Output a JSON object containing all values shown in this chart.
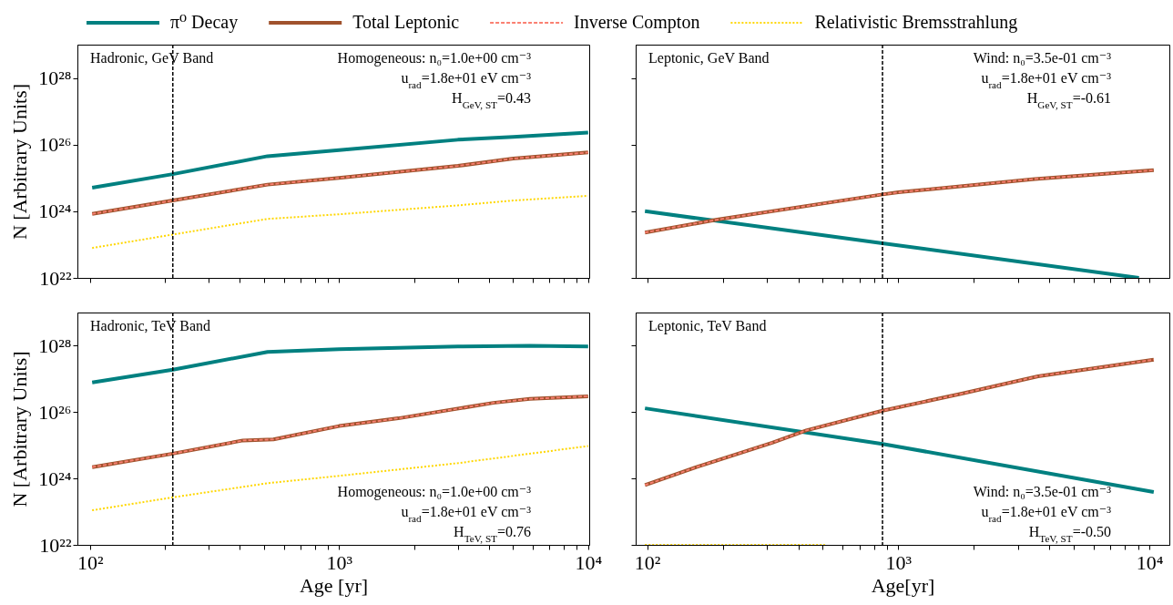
{
  "chart_data": [
    {
      "type": "line",
      "title": "Hadronic, GeV Band",
      "ylabel": "N [Arbitrary Units]",
      "log": "xy",
      "legend": "top",
      "tick_labels": "y",
      "xlim": [
        89,
        10100
      ],
      "ylim": [
        1e+22,
        1e+29
      ],
      "xticks": [
        {
          "value": 100,
          "label": null
        },
        {
          "value": 200,
          "label": null
        },
        {
          "value": 300,
          "label": null
        },
        {
          "value": 400,
          "label": null
        },
        {
          "value": 500,
          "label": null
        },
        {
          "value": 600,
          "label": null
        },
        {
          "value": 700,
          "label": null
        },
        {
          "value": 800,
          "label": null
        },
        {
          "value": 900,
          "label": null
        },
        {
          "value": 1000,
          "label": null
        },
        {
          "value": 2000,
          "label": null
        },
        {
          "value": 3000,
          "label": null
        },
        {
          "value": 4000,
          "label": null
        },
        {
          "value": 5000,
          "label": null
        },
        {
          "value": 6000,
          "label": null
        },
        {
          "value": 7000,
          "label": null
        },
        {
          "value": 8000,
          "label": null
        },
        {
          "value": 9000,
          "label": null
        },
        {
          "value": 10000,
          "label": null
        }
      ],
      "yticks": [
        {
          "value": 1e+22,
          "label": "10²²"
        },
        {
          "value": 1e+24,
          "label": "10²⁴"
        },
        {
          "value": 1e+26,
          "label": "10²⁶"
        },
        {
          "value": 1e+28,
          "label": "10²⁸"
        }
      ],
      "series": [
        {
          "name": "π⁰ Decay",
          "color": "#008080",
          "line_style": "solid",
          "x": [
            102,
            215,
            516,
            1000,
            3000,
            5000,
            10000
          ],
          "values": [
            5.1e+24,
            1.3e+25,
            4.5e+25,
            6.8e+25,
            1.4e+26,
            1.7e+26,
            2.3e+26
          ]
        },
        {
          "name": "Total Leptonic",
          "color": "#a0522d",
          "line_style": "solid",
          "x": [
            102,
            215,
            516,
            1000,
            3000,
            5000,
            10000
          ],
          "values": [
            8.3e+23,
            2.1e+24,
            6.3e+24,
            1e+25,
            2.3e+25,
            3.8e+25,
            5.8e+25
          ]
        },
        {
          "name": "Inverse Compton",
          "color": "#fa8072",
          "line_style": "dashed",
          "x": [
            102,
            215,
            516,
            1000,
            3000,
            5000,
            10000
          ],
          "values": [
            8.3e+23,
            2.1e+24,
            6.3e+24,
            1e+25,
            2.3e+25,
            3.8e+25,
            5.8e+25
          ]
        },
        {
          "name": "Relativistic Bremsstrahlung",
          "color": "#ffd700",
          "line_style": "dotted",
          "x": [
            102,
            215,
            516,
            1000,
            3000,
            5000,
            10000
          ],
          "values": [
            7.9e+22,
            2e+23,
            5.9e+23,
            8.1e+23,
            1.5e+24,
            2.1e+24,
            2.9e+24
          ]
        }
      ],
      "ref_lines": [
        {
          "axis": "x",
          "value": 215,
          "line_style": "dashed",
          "color": "#000000"
        }
      ],
      "annotations": [
        "Homogeneous: n₀=1.0e+00 cm⁻³",
        "u$_{rad}$=1.8e+01 eV cm⁻³",
        "H$_{GeV, ST}$=0.43"
      ]
    },
    {
      "type": "line",
      "title": "Leptonic, GeV Band",
      "log": "xy",
      "tick_labels": false,
      "xlim": [
        90,
        12000
      ],
      "ylim": [
        1e+22,
        1e+29
      ],
      "xticks": [
        {
          "value": 100,
          "label": null
        },
        {
          "value": 200,
          "label": null
        },
        {
          "value": 300,
          "label": null
        },
        {
          "value": 400,
          "label": null
        },
        {
          "value": 500,
          "label": null
        },
        {
          "value": 600,
          "label": null
        },
        {
          "value": 700,
          "label": null
        },
        {
          "value": 800,
          "label": null
        },
        {
          "value": 900,
          "label": null
        },
        {
          "value": 1000,
          "label": null
        },
        {
          "value": 2000,
          "label": null
        },
        {
          "value": 3000,
          "label": null
        },
        {
          "value": 4000,
          "label": null
        },
        {
          "value": 5000,
          "label": null
        },
        {
          "value": 6000,
          "label": null
        },
        {
          "value": 7000,
          "label": null
        },
        {
          "value": 8000,
          "label": null
        },
        {
          "value": 9000,
          "label": null
        },
        {
          "value": 10000,
          "label": null
        }
      ],
      "yticks": [
        {
          "value": 1e+22,
          "label": null
        },
        {
          "value": 1e+24,
          "label": null
        },
        {
          "value": 1e+26,
          "label": null
        },
        {
          "value": 1e+28,
          "label": null
        }
      ],
      "series": [
        {
          "color": "#008080",
          "line_style": "solid",
          "x": [
            98,
            865,
            9080
          ],
          "values": [
            1e+24,
            1.1e+23,
            1e+22
          ]
        },
        {
          "color": "#a0522d",
          "line_style": "solid",
          "x": [
            98,
            190,
            865,
            1000,
            3500,
            10400
          ],
          "values": [
            2.3e+23,
            5.6e+23,
            3.2e+24,
            3.7e+24,
            9.3e+24,
            1.7e+25
          ]
        },
        {
          "color": "#fa8072",
          "line_style": "dashed",
          "x": [
            98,
            190,
            865,
            1000,
            3500,
            10400
          ],
          "values": [
            2.3e+23,
            5.6e+23,
            3.2e+24,
            3.7e+24,
            9.3e+24,
            1.7e+25
          ]
        }
      ],
      "ref_lines": [
        {
          "axis": "x",
          "value": 865,
          "line_style": "dashed",
          "color": "#000000"
        }
      ],
      "annotations": [
        "Wind: n₀=3.5e-01 cm⁻³",
        "u$_{rad}$=1.8e+01 eV cm⁻³",
        "H$_{GeV, ST}$=-0.61"
      ]
    },
    {
      "type": "line",
      "title": "Hadronic, TeV Band",
      "xlabel": "Age [yr]",
      "ylabel": "N [Arbitrary Units]",
      "log": "xy",
      "xlim": [
        89,
        10100
      ],
      "ylim": [
        1e+22,
        1e+29
      ],
      "xticks": [
        {
          "value": 100,
          "label": "10²"
        },
        {
          "value": 200,
          "label": null
        },
        {
          "value": 300,
          "label": null
        },
        {
          "value": 400,
          "label": null
        },
        {
          "value": 500,
          "label": null
        },
        {
          "value": 600,
          "label": null
        },
        {
          "value": 700,
          "label": null
        },
        {
          "value": 800,
          "label": null
        },
        {
          "value": 900,
          "label": null
        },
        {
          "value": 1000,
          "label": "10³"
        },
        {
          "value": 2000,
          "label": null
        },
        {
          "value": 3000,
          "label": null
        },
        {
          "value": 4000,
          "label": null
        },
        {
          "value": 5000,
          "label": null
        },
        {
          "value": 6000,
          "label": null
        },
        {
          "value": 7000,
          "label": null
        },
        {
          "value": 8000,
          "label": null
        },
        {
          "value": 9000,
          "label": null
        },
        {
          "value": 10000,
          "label": "10⁴"
        }
      ],
      "yticks": [
        {
          "value": 1e+22,
          "label": "10²²"
        },
        {
          "value": 1e+24,
          "label": "10²⁴"
        },
        {
          "value": 1e+26,
          "label": "10²⁶"
        },
        {
          "value": 1e+28,
          "label": "10²⁸"
        }
      ],
      "series": [
        {
          "color": "#008080",
          "line_style": "solid",
          "x": [
            102,
            215,
            516,
            1000,
            3000,
            5830,
            10000
          ],
          "values": [
            7.8e+26,
            1.9e+27,
            6.5e+27,
            7.8e+27,
            9.5e+27,
            1e+28,
            9.5e+27
          ]
        },
        {
          "color": "#a0522d",
          "line_style": "solid",
          "x": [
            102,
            215,
            411,
            545,
            1000,
            1730,
            4160,
            5830,
            10000
          ],
          "values": [
            2.2e+24,
            5.6e+24,
            1.4e+25,
            1.5e+25,
            3.8e+25,
            6.5e+25,
            1.9e+26,
            2.5e+26,
            3e+26
          ]
        },
        {
          "color": "#fa8072",
          "line_style": "dashed",
          "x": [
            102,
            215,
            411,
            545,
            1000,
            1730,
            4160,
            5830,
            10000
          ],
          "values": [
            2.2e+24,
            5.6e+24,
            1.4e+25,
            1.5e+25,
            3.8e+25,
            6.5e+25,
            1.9e+26,
            2.5e+26,
            3e+26
          ]
        },
        {
          "color": "#ffd700",
          "line_style": "dotted",
          "x": [
            102,
            215,
            516,
            1000,
            3000,
            10000
          ],
          "values": [
            1.1e+23,
            2.7e+23,
            7.2e+23,
            1.2e+24,
            2.9e+24,
            9.5e+24
          ]
        }
      ],
      "ref_lines": [
        {
          "axis": "x",
          "value": 215,
          "line_style": "dashed",
          "color": "#000000"
        }
      ],
      "annotations": [
        "Homogeneous: n₀=1.0e+00 cm⁻³",
        "u$_{rad}$=1.8e+01 eV cm⁻³",
        "H$_{TeV, ST}$=0.76"
      ]
    },
    {
      "type": "line",
      "title": "Leptonic, TeV Band",
      "xlabel": "Age[yr]",
      "log": "xy",
      "tick_labels": "x",
      "xlim": [
        90,
        12000
      ],
      "ylim": [
        1e+22,
        1e+29
      ],
      "xticks": [
        {
          "value": 100,
          "label": "10²"
        },
        {
          "value": 200,
          "label": null
        },
        {
          "value": 300,
          "label": null
        },
        {
          "value": 400,
          "label": null
        },
        {
          "value": 500,
          "label": null
        },
        {
          "value": 600,
          "label": null
        },
        {
          "value": 700,
          "label": null
        },
        {
          "value": 800,
          "label": null
        },
        {
          "value": 900,
          "label": null
        },
        {
          "value": 1000,
          "label": "10³"
        },
        {
          "value": 2000,
          "label": null
        },
        {
          "value": 3000,
          "label": null
        },
        {
          "value": 4000,
          "label": null
        },
        {
          "value": 5000,
          "label": null
        },
        {
          "value": 6000,
          "label": null
        },
        {
          "value": 7000,
          "label": null
        },
        {
          "value": 8000,
          "label": null
        },
        {
          "value": 9000,
          "label": null
        },
        {
          "value": 10000,
          "label": "10⁴"
        }
      ],
      "yticks": [
        {
          "value": 1e+22,
          "label": null
        },
        {
          "value": 1e+24,
          "label": null
        },
        {
          "value": 1e+26,
          "label": null
        },
        {
          "value": 1e+28,
          "label": null
        }
      ],
      "series": [
        {
          "color": "#008080",
          "line_style": "solid",
          "x": [
            98,
            865,
            10400
          ],
          "values": [
            1.3e+26,
            1.1e+25,
            3.9e+23
          ]
        },
        {
          "color": "#a0522d",
          "line_style": "solid",
          "x": [
            98,
            157,
            315,
            430,
            865,
            1790,
            3600,
            10400
          ],
          "values": [
            6.3e+23,
            2.2e+24,
            1.2e+25,
            2.8e+25,
            1.1e+26,
            3.6e+26,
            1.2e+27,
            3.8e+27
          ]
        },
        {
          "color": "#fa8072",
          "line_style": "dashed",
          "x": [
            98,
            157,
            315,
            430,
            865,
            1790,
            3600,
            10400
          ],
          "values": [
            6.3e+23,
            2.2e+24,
            1.2e+25,
            2.8e+25,
            1.1e+26,
            3.6e+26,
            1.2e+27,
            3.8e+27
          ]
        },
        {
          "color": "#ffd700",
          "line_style": "dotted",
          "x": [
            98,
            510
          ],
          "values": [
            1e+22,
            1e+22
          ]
        }
      ],
      "ref_lines": [
        {
          "axis": "x",
          "value": 865,
          "line_style": "dashed",
          "color": "#000000"
        }
      ],
      "annotations": [
        "Wind: n₀=3.5e-01 cm⁻³",
        "u$_{rad}$=1.8e+01 eV cm⁻³",
        "H$_{TeV, ST}$=-0.50"
      ]
    }
  ]
}
